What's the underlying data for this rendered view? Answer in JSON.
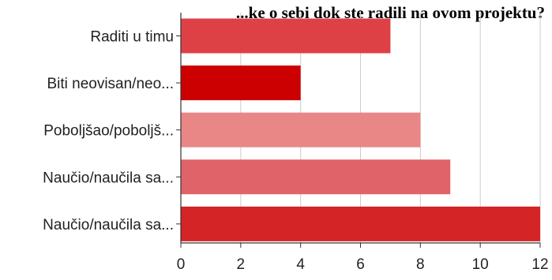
{
  "chart_data": {
    "type": "bar",
    "orientation": "horizontal",
    "title": "...ke o sebi dok ste radili na ovom projektu?",
    "categories": [
      "Raditi u timu",
      "Biti neovisan/neo...",
      "Poboljšao/poboljš...",
      "Naučio/naučila sa...",
      "Naučio/naučila sa..."
    ],
    "values": [
      7,
      4,
      8,
      9,
      12
    ],
    "bar_colors": [
      "#dd4146",
      "#cc0000",
      "#e98787",
      "#e1636a",
      "#d42425"
    ],
    "xlim": [
      0,
      12
    ],
    "xticks": [
      "0",
      "2",
      "4",
      "6",
      "8",
      "10",
      "12"
    ],
    "xlabel": "",
    "ylabel": "",
    "grid": true,
    "grid_color": "#cccccc",
    "axis_color": "#333333",
    "legend": "none"
  }
}
